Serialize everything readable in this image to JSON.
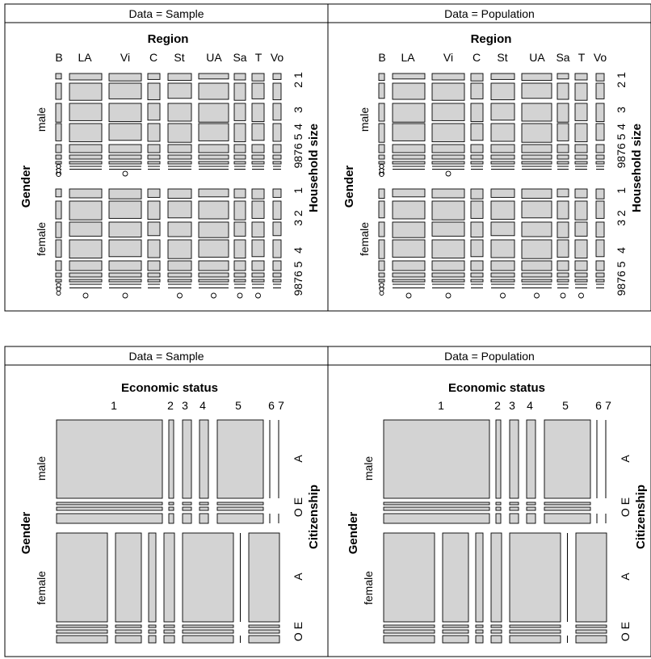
{
  "chart_data": [
    {
      "type": "mosaic",
      "strips": [
        "Data = Sample",
        "Data = Population"
      ],
      "top_variable": {
        "title": "Region",
        "levels": [
          "B",
          "LA",
          "Vi",
          "C",
          "St",
          "UA",
          "Sa",
          "T",
          "Vo"
        ],
        "proportions": [
          0.03,
          0.16,
          0.16,
          0.05,
          0.12,
          0.16,
          0.07,
          0.06,
          0.04
        ]
      },
      "left_variable": {
        "title": "Gender",
        "levels": [
          "male",
          "female"
        ],
        "proportions": [
          0.49,
          0.51
        ]
      },
      "right_variable": {
        "title": "Household size",
        "levels": [
          "1",
          "2",
          "3",
          "4",
          "5",
          "6",
          "7",
          "8",
          "9"
        ],
        "tick_label_groups": [
          [
            "1",
            "1"
          ],
          [
            "2",
            "2"
          ],
          [
            "3",
            "3"
          ],
          [
            "4",
            "4"
          ],
          [
            "5",
            "5"
          ],
          [
            "9876",
            "6"
          ]
        ]
      },
      "conditional_proportions": {
        "male": [
          0.07,
          0.22,
          0.19,
          0.19,
          0.12,
          0.06,
          0.04,
          0.02,
          0.005
        ],
        "female": [
          0.12,
          0.26,
          0.18,
          0.18,
          0.12,
          0.06,
          0.03,
          0.015,
          0.005
        ]
      }
    },
    {
      "type": "mosaic",
      "strips": [
        "Data = Sample",
        "Data = Population"
      ],
      "top_variable": {
        "title": "Economic status",
        "levels": [
          "1",
          "2",
          "3",
          "4",
          "5",
          "6",
          "7"
        ],
        "proportions": [
          0.47,
          0.03,
          0.05,
          0.06,
          0.22,
          0.01,
          0.02
        ]
      },
      "left_variable": {
        "title": "Gender",
        "levels": [
          "male",
          "female"
        ],
        "proportions": [
          0.48,
          0.52
        ]
      },
      "right_variable": {
        "title": "Citizenship",
        "levels": [
          "A",
          "E",
          "O"
        ]
      }
    }
  ]
}
